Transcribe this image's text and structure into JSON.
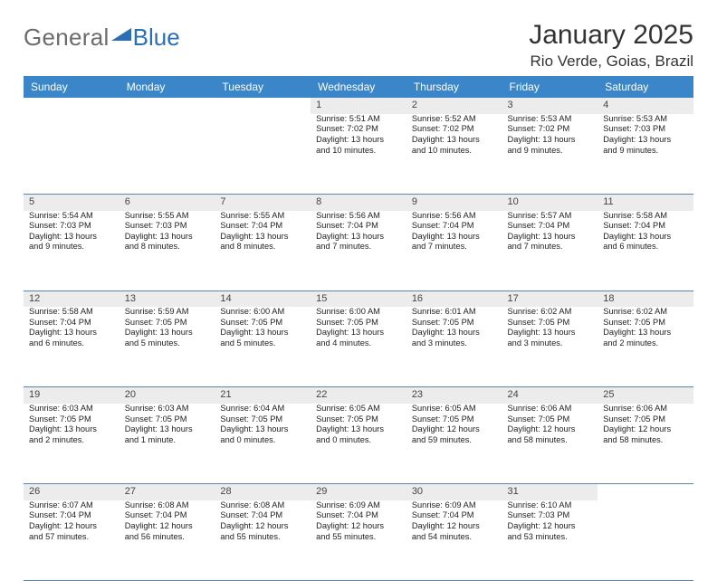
{
  "brand": {
    "part1": "General",
    "part2": "Blue"
  },
  "title": "January 2025",
  "location": "Rio Verde, Goias, Brazil",
  "colors": {
    "header_bg": "#3a86c8",
    "header_text": "#ffffff",
    "daynum_bg": "#ececec",
    "rule": "#5a84a8",
    "brand_grey": "#6c6c6c",
    "brand_blue": "#2a6fb5",
    "page_bg": "#ffffff"
  },
  "dayHeaders": [
    "Sunday",
    "Monday",
    "Tuesday",
    "Wednesday",
    "Thursday",
    "Friday",
    "Saturday"
  ],
  "weeks": [
    [
      {
        "n": "",
        "lines": []
      },
      {
        "n": "",
        "lines": []
      },
      {
        "n": "",
        "lines": []
      },
      {
        "n": "1",
        "lines": [
          "Sunrise: 5:51 AM",
          "Sunset: 7:02 PM",
          "Daylight: 13 hours",
          "and 10 minutes."
        ]
      },
      {
        "n": "2",
        "lines": [
          "Sunrise: 5:52 AM",
          "Sunset: 7:02 PM",
          "Daylight: 13 hours",
          "and 10 minutes."
        ]
      },
      {
        "n": "3",
        "lines": [
          "Sunrise: 5:53 AM",
          "Sunset: 7:02 PM",
          "Daylight: 13 hours",
          "and 9 minutes."
        ]
      },
      {
        "n": "4",
        "lines": [
          "Sunrise: 5:53 AM",
          "Sunset: 7:03 PM",
          "Daylight: 13 hours",
          "and 9 minutes."
        ]
      }
    ],
    [
      {
        "n": "5",
        "lines": [
          "Sunrise: 5:54 AM",
          "Sunset: 7:03 PM",
          "Daylight: 13 hours",
          "and 9 minutes."
        ]
      },
      {
        "n": "6",
        "lines": [
          "Sunrise: 5:55 AM",
          "Sunset: 7:03 PM",
          "Daylight: 13 hours",
          "and 8 minutes."
        ]
      },
      {
        "n": "7",
        "lines": [
          "Sunrise: 5:55 AM",
          "Sunset: 7:04 PM",
          "Daylight: 13 hours",
          "and 8 minutes."
        ]
      },
      {
        "n": "8",
        "lines": [
          "Sunrise: 5:56 AM",
          "Sunset: 7:04 PM",
          "Daylight: 13 hours",
          "and 7 minutes."
        ]
      },
      {
        "n": "9",
        "lines": [
          "Sunrise: 5:56 AM",
          "Sunset: 7:04 PM",
          "Daylight: 13 hours",
          "and 7 minutes."
        ]
      },
      {
        "n": "10",
        "lines": [
          "Sunrise: 5:57 AM",
          "Sunset: 7:04 PM",
          "Daylight: 13 hours",
          "and 7 minutes."
        ]
      },
      {
        "n": "11",
        "lines": [
          "Sunrise: 5:58 AM",
          "Sunset: 7:04 PM",
          "Daylight: 13 hours",
          "and 6 minutes."
        ]
      }
    ],
    [
      {
        "n": "12",
        "lines": [
          "Sunrise: 5:58 AM",
          "Sunset: 7:04 PM",
          "Daylight: 13 hours",
          "and 6 minutes."
        ]
      },
      {
        "n": "13",
        "lines": [
          "Sunrise: 5:59 AM",
          "Sunset: 7:05 PM",
          "Daylight: 13 hours",
          "and 5 minutes."
        ]
      },
      {
        "n": "14",
        "lines": [
          "Sunrise: 6:00 AM",
          "Sunset: 7:05 PM",
          "Daylight: 13 hours",
          "and 5 minutes."
        ]
      },
      {
        "n": "15",
        "lines": [
          "Sunrise: 6:00 AM",
          "Sunset: 7:05 PM",
          "Daylight: 13 hours",
          "and 4 minutes."
        ]
      },
      {
        "n": "16",
        "lines": [
          "Sunrise: 6:01 AM",
          "Sunset: 7:05 PM",
          "Daylight: 13 hours",
          "and 3 minutes."
        ]
      },
      {
        "n": "17",
        "lines": [
          "Sunrise: 6:02 AM",
          "Sunset: 7:05 PM",
          "Daylight: 13 hours",
          "and 3 minutes."
        ]
      },
      {
        "n": "18",
        "lines": [
          "Sunrise: 6:02 AM",
          "Sunset: 7:05 PM",
          "Daylight: 13 hours",
          "and 2 minutes."
        ]
      }
    ],
    [
      {
        "n": "19",
        "lines": [
          "Sunrise: 6:03 AM",
          "Sunset: 7:05 PM",
          "Daylight: 13 hours",
          "and 2 minutes."
        ]
      },
      {
        "n": "20",
        "lines": [
          "Sunrise: 6:03 AM",
          "Sunset: 7:05 PM",
          "Daylight: 13 hours",
          "and 1 minute."
        ]
      },
      {
        "n": "21",
        "lines": [
          "Sunrise: 6:04 AM",
          "Sunset: 7:05 PM",
          "Daylight: 13 hours",
          "and 0 minutes."
        ]
      },
      {
        "n": "22",
        "lines": [
          "Sunrise: 6:05 AM",
          "Sunset: 7:05 PM",
          "Daylight: 13 hours",
          "and 0 minutes."
        ]
      },
      {
        "n": "23",
        "lines": [
          "Sunrise: 6:05 AM",
          "Sunset: 7:05 PM",
          "Daylight: 12 hours",
          "and 59 minutes."
        ]
      },
      {
        "n": "24",
        "lines": [
          "Sunrise: 6:06 AM",
          "Sunset: 7:05 PM",
          "Daylight: 12 hours",
          "and 58 minutes."
        ]
      },
      {
        "n": "25",
        "lines": [
          "Sunrise: 6:06 AM",
          "Sunset: 7:05 PM",
          "Daylight: 12 hours",
          "and 58 minutes."
        ]
      }
    ],
    [
      {
        "n": "26",
        "lines": [
          "Sunrise: 6:07 AM",
          "Sunset: 7:04 PM",
          "Daylight: 12 hours",
          "and 57 minutes."
        ]
      },
      {
        "n": "27",
        "lines": [
          "Sunrise: 6:08 AM",
          "Sunset: 7:04 PM",
          "Daylight: 12 hours",
          "and 56 minutes."
        ]
      },
      {
        "n": "28",
        "lines": [
          "Sunrise: 6:08 AM",
          "Sunset: 7:04 PM",
          "Daylight: 12 hours",
          "and 55 minutes."
        ]
      },
      {
        "n": "29",
        "lines": [
          "Sunrise: 6:09 AM",
          "Sunset: 7:04 PM",
          "Daylight: 12 hours",
          "and 55 minutes."
        ]
      },
      {
        "n": "30",
        "lines": [
          "Sunrise: 6:09 AM",
          "Sunset: 7:04 PM",
          "Daylight: 12 hours",
          "and 54 minutes."
        ]
      },
      {
        "n": "31",
        "lines": [
          "Sunrise: 6:10 AM",
          "Sunset: 7:03 PM",
          "Daylight: 12 hours",
          "and 53 minutes."
        ]
      },
      {
        "n": "",
        "lines": []
      }
    ]
  ]
}
